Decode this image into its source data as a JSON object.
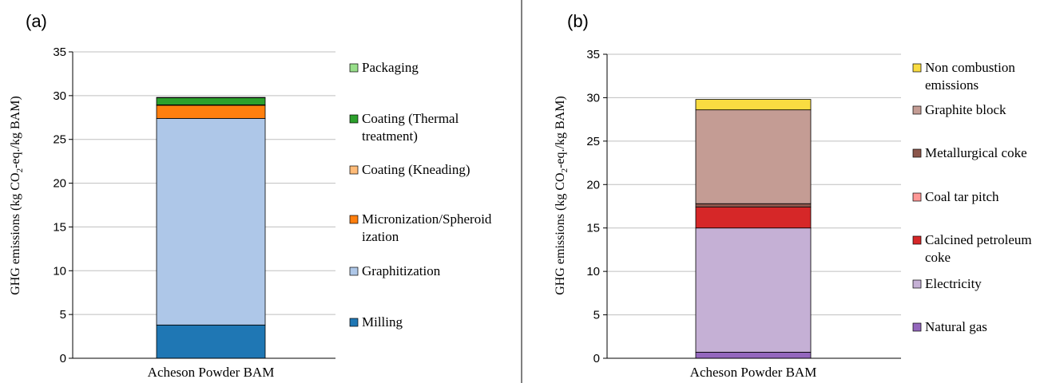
{
  "panels": [
    {
      "panel_label": "(a)",
      "ylabel_main": "GHG emissions (kg CO",
      "ylabel_sub": "2",
      "ylabel_tail": "-eq./kg BAM)",
      "legend": [
        {
          "lines": [
            "Packaging"
          ],
          "color": "#98df8a"
        },
        {
          "lines": [
            "Coating (Thermal",
            "treatment)"
          ],
          "color": "#2ca02c"
        },
        {
          "lines": [
            "Coating (Kneading)"
          ],
          "color": "#ffbb78"
        },
        {
          "lines": [
            "Micronization/Spheroid",
            "ization"
          ],
          "color": "#ff7f0e"
        },
        {
          "lines": [
            "Graphitization"
          ],
          "color": "#aec7e8"
        },
        {
          "lines": [
            "Milling"
          ],
          "color": "#1f77b4"
        }
      ]
    },
    {
      "panel_label": "(b)",
      "ylabel_main": "GHG emissions (kg CO",
      "ylabel_sub": "2",
      "ylabel_tail": "-eq./kg BAM)",
      "legend": [
        {
          "lines": [
            "Non combustion",
            "emissions"
          ],
          "color": "#f9dc41"
        },
        {
          "lines": [
            "Graphite block"
          ],
          "color": "#c49c94"
        },
        {
          "lines": [
            "Metallurgical coke"
          ],
          "color": "#8c564b"
        },
        {
          "lines": [
            "Coal tar pitch"
          ],
          "color": "#ff9896"
        },
        {
          "lines": [
            "Calcined petroleum",
            "coke"
          ],
          "color": "#d62728"
        },
        {
          "lines": [
            "Electricity"
          ],
          "color": "#c5b0d5"
        },
        {
          "lines": [
            "Natural gas"
          ],
          "color": "#9467bd"
        }
      ]
    }
  ],
  "chart_data": [
    {
      "type": "bar",
      "stacked": true,
      "categories": [
        "Acheson Powder BAM"
      ],
      "ylim": [
        0,
        35
      ],
      "yticks": [
        0,
        5,
        10,
        15,
        20,
        25,
        30,
        35
      ],
      "grid": true,
      "legend_position": "right",
      "series": [
        {
          "name": "Milling",
          "values": [
            3.8
          ],
          "color": "#1f77b4"
        },
        {
          "name": "Graphitization",
          "values": [
            23.6
          ],
          "color": "#aec7e8"
        },
        {
          "name": "Micronization/Spheroidization",
          "values": [
            1.5
          ],
          "color": "#ff7f0e"
        },
        {
          "name": "Coating (Kneading)",
          "values": [
            0.05
          ],
          "color": "#ffbb78"
        },
        {
          "name": "Coating (Thermal treatment)",
          "values": [
            0.8
          ],
          "color": "#2ca02c"
        },
        {
          "name": "Packaging",
          "values": [
            0.05
          ],
          "color": "#98df8a"
        }
      ]
    },
    {
      "type": "bar",
      "stacked": true,
      "categories": [
        "Acheson Powder BAM"
      ],
      "ylim": [
        0,
        35
      ],
      "yticks": [
        0,
        5,
        10,
        15,
        20,
        25,
        30,
        35
      ],
      "grid": true,
      "legend_position": "right",
      "series": [
        {
          "name": "Natural gas",
          "values": [
            0.7
          ],
          "color": "#9467bd"
        },
        {
          "name": "Electricity",
          "values": [
            14.3
          ],
          "color": "#c5b0d5"
        },
        {
          "name": "Calcined petroleum coke",
          "values": [
            2.4
          ],
          "color": "#d62728"
        },
        {
          "name": "Coal tar pitch",
          "values": [
            0.0
          ],
          "color": "#ff9896"
        },
        {
          "name": "Metallurgical coke",
          "values": [
            0.4
          ],
          "color": "#8c564b"
        },
        {
          "name": "Graphite block",
          "values": [
            10.8
          ],
          "color": "#c49c94"
        },
        {
          "name": "Non combustion emissions",
          "values": [
            1.2
          ],
          "color": "#f9dc41"
        }
      ]
    }
  ]
}
